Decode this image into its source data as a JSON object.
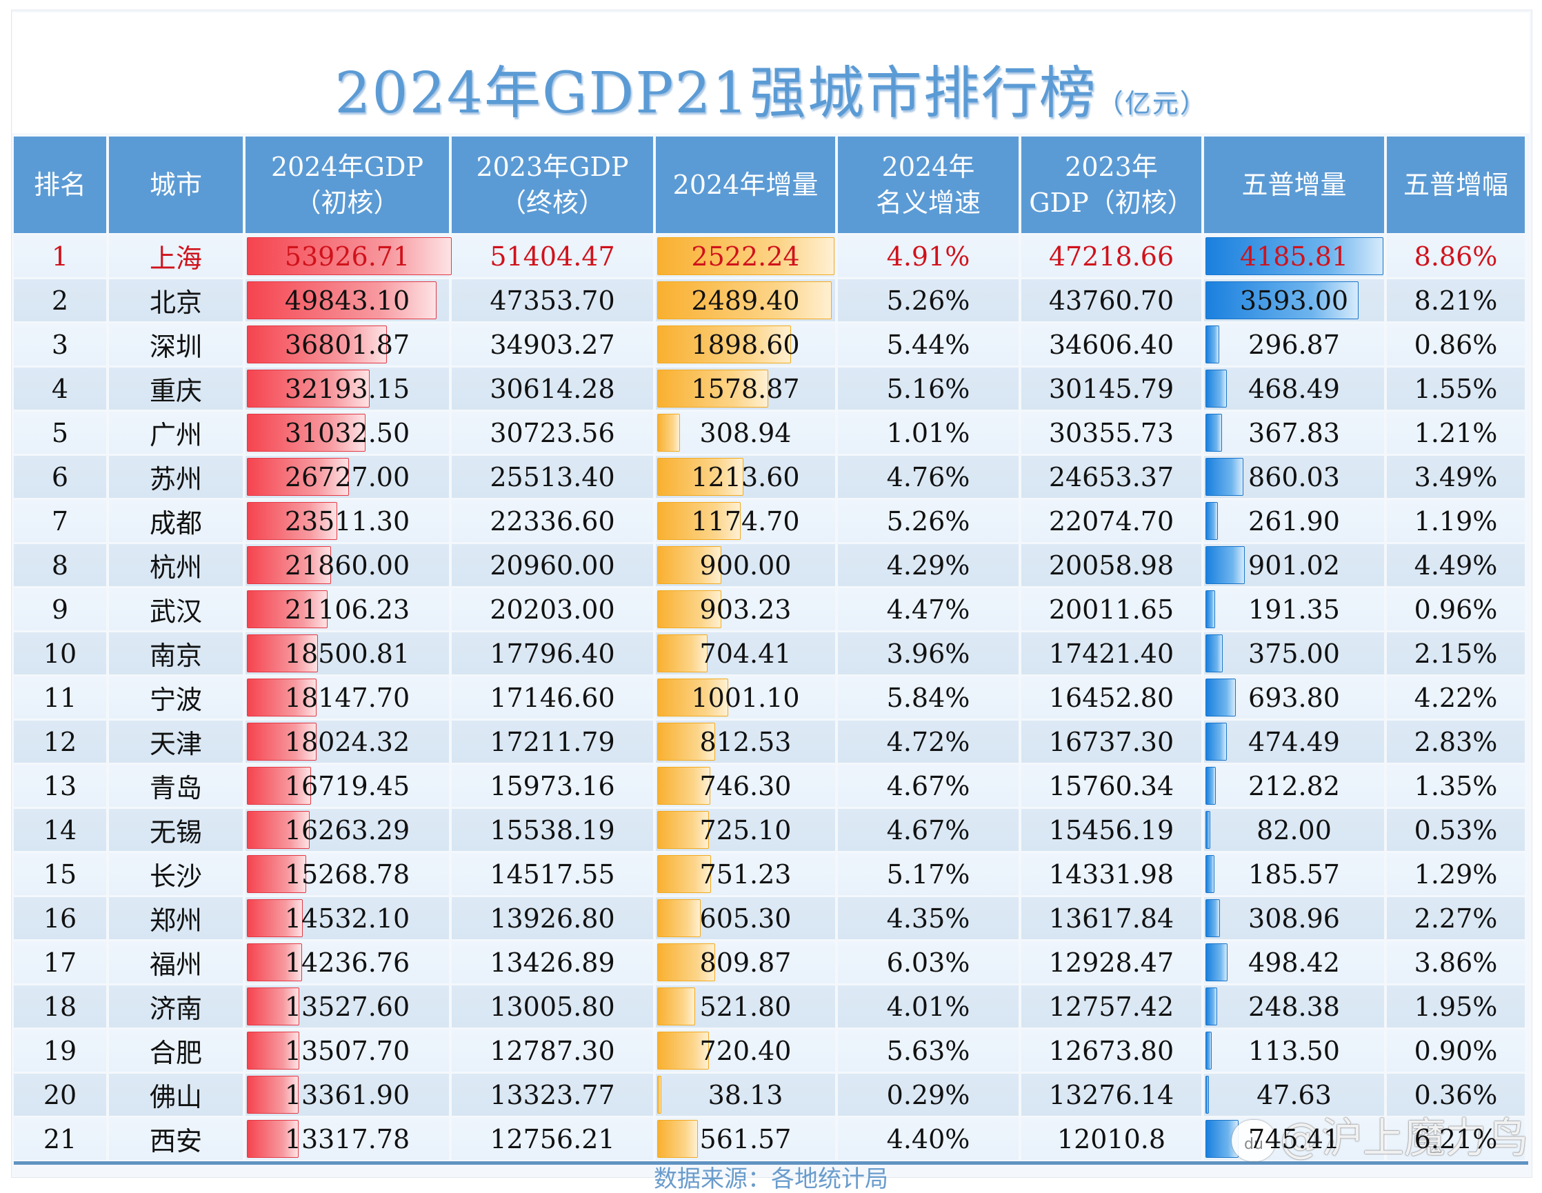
{
  "title": {
    "main": "2024年GDP21强城市排行榜",
    "unit": "（亿元）"
  },
  "headers": [
    [
      "排名"
    ],
    [
      "城市"
    ],
    [
      "2024年GDP",
      "（初核）"
    ],
    [
      "2023年GDP",
      "（终核）"
    ],
    [
      "2024年增量"
    ],
    [
      "2024年",
      "名义增速"
    ],
    [
      "2023年",
      "GDP（初核）"
    ],
    [
      "五普增量"
    ],
    [
      "五普增幅"
    ]
  ],
  "colors": {
    "header_bg": "#5b9bd5",
    "gdp_bar": "#f5444f",
    "increase_bar": "#f9b030",
    "wupu_bar": "#1a80de",
    "highlight_text": "#d0121b"
  },
  "rows": [
    {
      "rank": "1",
      "city": "上海",
      "gdp2024": "53926.71",
      "gdp2023": "51404.47",
      "increase": "2522.24",
      "growth": "4.91%",
      "gdp2023_init": "47218.66",
      "wupu_inc": "4185.81",
      "wupu_pct": "8.86%"
    },
    {
      "rank": "2",
      "city": "北京",
      "gdp2024": "49843.10",
      "gdp2023": "47353.70",
      "increase": "2489.40",
      "growth": "5.26%",
      "gdp2023_init": "43760.70",
      "wupu_inc": "3593.00",
      "wupu_pct": "8.21%"
    },
    {
      "rank": "3",
      "city": "深圳",
      "gdp2024": "36801.87",
      "gdp2023": "34903.27",
      "increase": "1898.60",
      "growth": "5.44%",
      "gdp2023_init": "34606.40",
      "wupu_inc": "296.87",
      "wupu_pct": "0.86%"
    },
    {
      "rank": "4",
      "city": "重庆",
      "gdp2024": "32193.15",
      "gdp2023": "30614.28",
      "increase": "1578.87",
      "growth": "5.16%",
      "gdp2023_init": "30145.79",
      "wupu_inc": "468.49",
      "wupu_pct": "1.55%"
    },
    {
      "rank": "5",
      "city": "广州",
      "gdp2024": "31032.50",
      "gdp2023": "30723.56",
      "increase": "308.94",
      "growth": "1.01%",
      "gdp2023_init": "30355.73",
      "wupu_inc": "367.83",
      "wupu_pct": "1.21%"
    },
    {
      "rank": "6",
      "city": "苏州",
      "gdp2024": "26727.00",
      "gdp2023": "25513.40",
      "increase": "1213.60",
      "growth": "4.76%",
      "gdp2023_init": "24653.37",
      "wupu_inc": "860.03",
      "wupu_pct": "3.49%"
    },
    {
      "rank": "7",
      "city": "成都",
      "gdp2024": "23511.30",
      "gdp2023": "22336.60",
      "increase": "1174.70",
      "growth": "5.26%",
      "gdp2023_init": "22074.70",
      "wupu_inc": "261.90",
      "wupu_pct": "1.19%"
    },
    {
      "rank": "8",
      "city": "杭州",
      "gdp2024": "21860.00",
      "gdp2023": "20960.00",
      "increase": "900.00",
      "growth": "4.29%",
      "gdp2023_init": "20058.98",
      "wupu_inc": "901.02",
      "wupu_pct": "4.49%"
    },
    {
      "rank": "9",
      "city": "武汉",
      "gdp2024": "21106.23",
      "gdp2023": "20203.00",
      "increase": "903.23",
      "growth": "4.47%",
      "gdp2023_init": "20011.65",
      "wupu_inc": "191.35",
      "wupu_pct": "0.96%"
    },
    {
      "rank": "10",
      "city": "南京",
      "gdp2024": "18500.81",
      "gdp2023": "17796.40",
      "increase": "704.41",
      "growth": "3.96%",
      "gdp2023_init": "17421.40",
      "wupu_inc": "375.00",
      "wupu_pct": "2.15%"
    },
    {
      "rank": "11",
      "city": "宁波",
      "gdp2024": "18147.70",
      "gdp2023": "17146.60",
      "increase": "1001.10",
      "growth": "5.84%",
      "gdp2023_init": "16452.80",
      "wupu_inc": "693.80",
      "wupu_pct": "4.22%"
    },
    {
      "rank": "12",
      "city": "天津",
      "gdp2024": "18024.32",
      "gdp2023": "17211.79",
      "increase": "812.53",
      "growth": "4.72%",
      "gdp2023_init": "16737.30",
      "wupu_inc": "474.49",
      "wupu_pct": "2.83%"
    },
    {
      "rank": "13",
      "city": "青岛",
      "gdp2024": "16719.45",
      "gdp2023": "15973.16",
      "increase": "746.30",
      "growth": "4.67%",
      "gdp2023_init": "15760.34",
      "wupu_inc": "212.82",
      "wupu_pct": "1.35%"
    },
    {
      "rank": "14",
      "city": "无锡",
      "gdp2024": "16263.29",
      "gdp2023": "15538.19",
      "increase": "725.10",
      "growth": "4.67%",
      "gdp2023_init": "15456.19",
      "wupu_inc": "82.00",
      "wupu_pct": "0.53%"
    },
    {
      "rank": "15",
      "city": "长沙",
      "gdp2024": "15268.78",
      "gdp2023": "14517.55",
      "increase": "751.23",
      "growth": "5.17%",
      "gdp2023_init": "14331.98",
      "wupu_inc": "185.57",
      "wupu_pct": "1.29%"
    },
    {
      "rank": "16",
      "city": "郑州",
      "gdp2024": "14532.10",
      "gdp2023": "13926.80",
      "increase": "605.30",
      "growth": "4.35%",
      "gdp2023_init": "13617.84",
      "wupu_inc": "308.96",
      "wupu_pct": "2.27%"
    },
    {
      "rank": "17",
      "city": "福州",
      "gdp2024": "14236.76",
      "gdp2023": "13426.89",
      "increase": "809.87",
      "growth": "6.03%",
      "gdp2023_init": "12928.47",
      "wupu_inc": "498.42",
      "wupu_pct": "3.86%"
    },
    {
      "rank": "18",
      "city": "济南",
      "gdp2024": "13527.60",
      "gdp2023": "13005.80",
      "increase": "521.80",
      "growth": "4.01%",
      "gdp2023_init": "12757.42",
      "wupu_inc": "248.38",
      "wupu_pct": "1.95%"
    },
    {
      "rank": "19",
      "city": "合肥",
      "gdp2024": "13507.70",
      "gdp2023": "12787.30",
      "increase": "720.40",
      "growth": "5.63%",
      "gdp2023_init": "12673.80",
      "wupu_inc": "113.50",
      "wupu_pct": "0.90%"
    },
    {
      "rank": "20",
      "city": "佛山",
      "gdp2024": "13361.90",
      "gdp2023": "13323.77",
      "increase": "38.13",
      "growth": "0.29%",
      "gdp2023_init": "13276.14",
      "wupu_inc": "47.63",
      "wupu_pct": "0.36%"
    },
    {
      "rank": "21",
      "city": "西安",
      "gdp2024": "13317.78",
      "gdp2023": "12756.21",
      "increase": "561.57",
      "growth": "4.40%",
      "gdp2023_init": "12010.8",
      "wupu_inc": "745.41",
      "wupu_pct": "6.21%"
    }
  ],
  "footer": "数据来源：各地统计局",
  "watermark": {
    "icon": "baidu-paw-icon",
    "icon_text": "du",
    "text": "@沪上魔力鸟"
  }
}
